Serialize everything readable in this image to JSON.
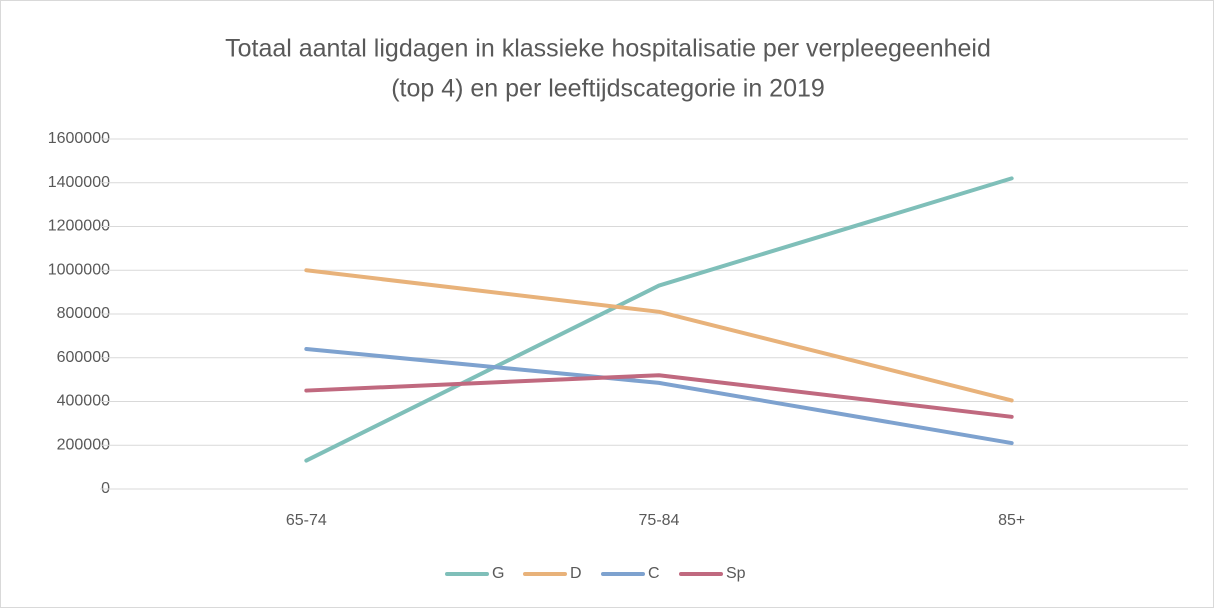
{
  "chart_data": {
    "type": "line",
    "title": [
      "Totaal aantal ligdagen in klassieke hospitalisatie per verpleegeenheid",
      "(top 4) en per leeftijdscategorie in 2019"
    ],
    "categories": [
      "65-74",
      "75-84",
      "85+"
    ],
    "series": [
      {
        "name": "G",
        "color": "#7fbfb9",
        "values": [
          130000,
          930000,
          1420000
        ]
      },
      {
        "name": "D",
        "color": "#e8b27a",
        "values": [
          1000000,
          810000,
          405000
        ]
      },
      {
        "name": "C",
        "color": "#7ea2cf",
        "values": [
          640000,
          485000,
          210000
        ]
      },
      {
        "name": "Sp",
        "color": "#c0697f",
        "values": [
          450000,
          520000,
          330000
        ]
      }
    ],
    "ylim": [
      0,
      1600000
    ],
    "yticks": [
      0,
      200000,
      400000,
      600000,
      800000,
      1000000,
      1200000,
      1400000,
      1600000
    ],
    "grid": true,
    "legend": "bottom"
  }
}
